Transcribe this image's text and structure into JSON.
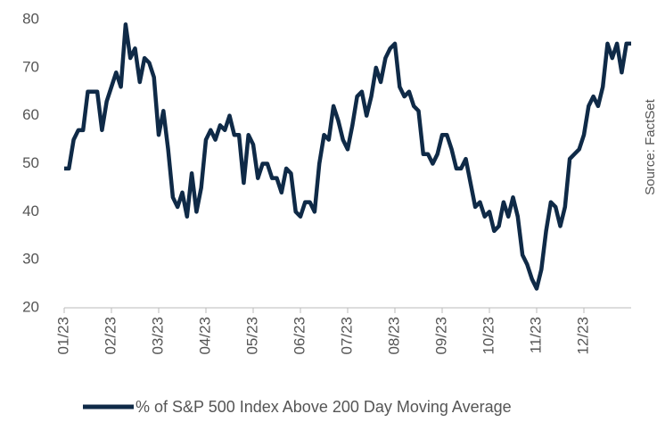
{
  "chart_data": {
    "type": "line",
    "series": [
      {
        "name": "% of S&P 500 Index Above 200 Day Moving Average",
        "color": "#0f2a47",
        "values": [
          49,
          49,
          55,
          57,
          57,
          65,
          65,
          65,
          57,
          63,
          66,
          69,
          66,
          79,
          72,
          74,
          67,
          72,
          71,
          68,
          56,
          61,
          53,
          43,
          41,
          44,
          39,
          48,
          40,
          45,
          55,
          57,
          55,
          58,
          57,
          60,
          56,
          56,
          46,
          56,
          54,
          47,
          50,
          50,
          47,
          47,
          44,
          49,
          48,
          40,
          39,
          42,
          42,
          40,
          50,
          56,
          55,
          62,
          59,
          55,
          53,
          58,
          64,
          65,
          60,
          64,
          70,
          67,
          72,
          74,
          75,
          66,
          64,
          65,
          62,
          61,
          52,
          52,
          50,
          52,
          56,
          56,
          53,
          49,
          49,
          51,
          46,
          41,
          42,
          39,
          40,
          36,
          37,
          42,
          39,
          43,
          39,
          31,
          29,
          26,
          24,
          28,
          36,
          42,
          41,
          37,
          41,
          51,
          52,
          53,
          56,
          62,
          64,
          62,
          66,
          75,
          72,
          75,
          69,
          75,
          75
        ]
      }
    ],
    "xticks": [
      "01/23",
      "02/23",
      "03/23",
      "04/23",
      "05/23",
      "06/23",
      "07/23",
      "08/23",
      "09/23",
      "10/23",
      "11/23",
      "12/23"
    ],
    "ylim": [
      20,
      80
    ],
    "yticks": [
      20,
      30,
      40,
      50,
      60,
      70,
      80
    ],
    "source": "Source: FactSet"
  }
}
